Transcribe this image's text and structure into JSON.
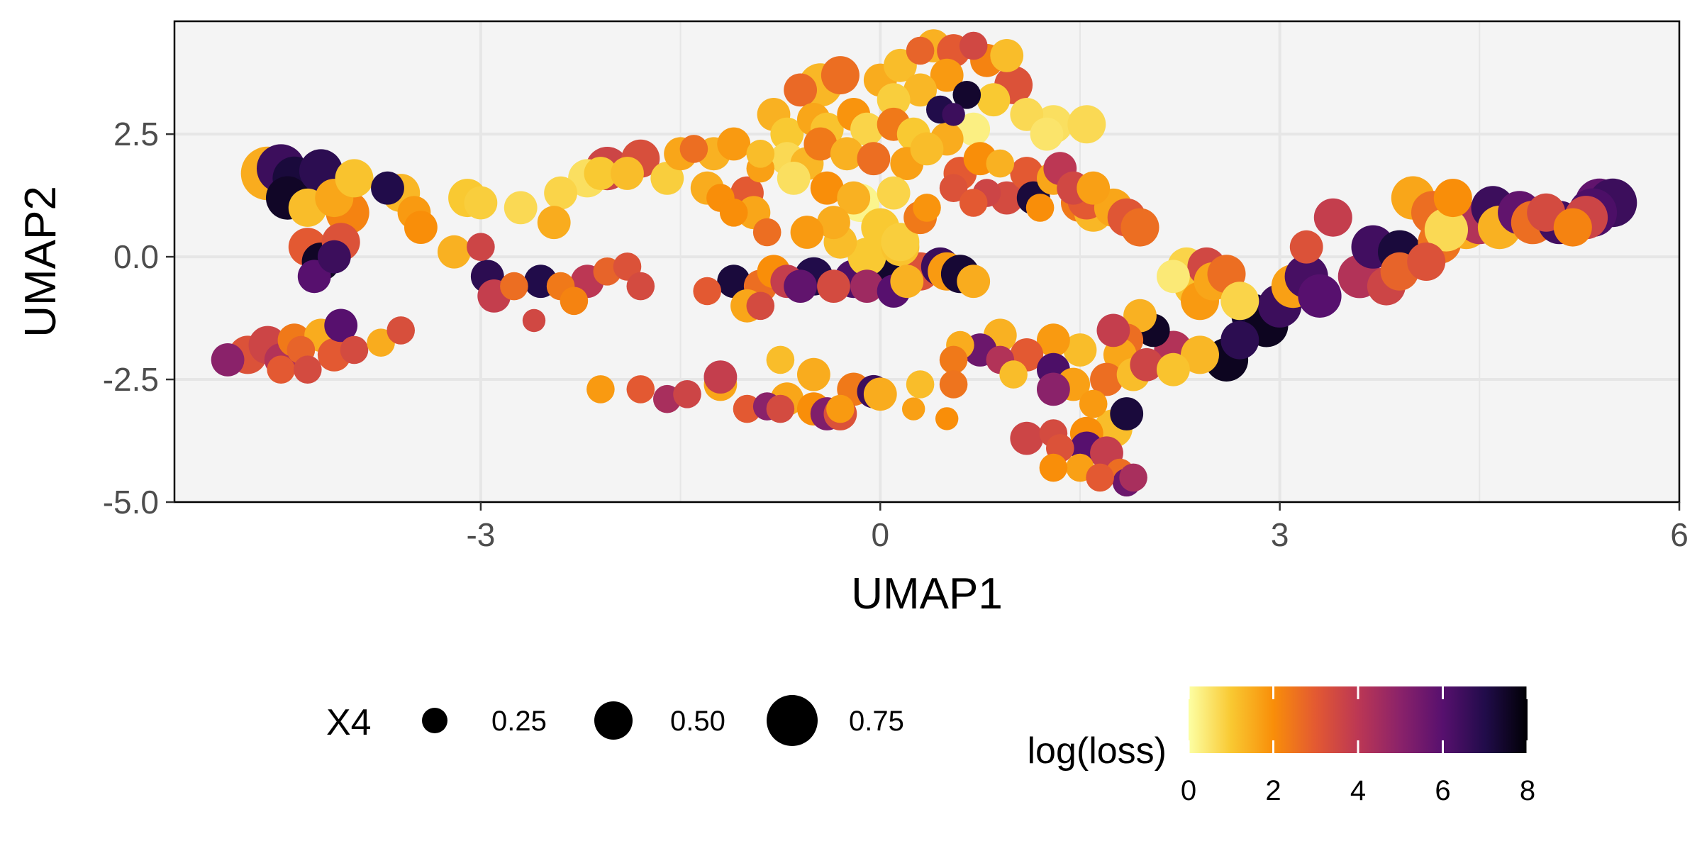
{
  "chart_data": {
    "type": "scatter",
    "xlabel": "UMAP1",
    "ylabel": "UMAP2",
    "xlim": [
      -5.3,
      6.0
    ],
    "ylim": [
      -5.0,
      4.8
    ],
    "x_ticks": [
      -3,
      0,
      3,
      6
    ],
    "x_tick_labels": [
      "-3",
      "0",
      "3",
      "6"
    ],
    "y_ticks": [
      -5.0,
      -2.5,
      0.0,
      2.5
    ],
    "y_tick_labels": [
      "-5.0",
      "-2.5",
      "0.0",
      "2.5"
    ],
    "grid": true,
    "panel_background": "#f4f4f4",
    "grid_color": "#e6e6e6",
    "size_legend": {
      "title": "X4",
      "entries": [
        {
          "value": 0.25,
          "label": "0.25"
        },
        {
          "value": 0.5,
          "label": "0.50"
        },
        {
          "value": 0.75,
          "label": "0.75"
        }
      ]
    },
    "color_legend": {
      "title": "log(loss)",
      "palette": "inferno-reversed",
      "range": [
        0,
        8
      ],
      "tick_values": [
        0,
        2,
        4,
        6,
        8
      ],
      "tick_labels": [
        "0",
        "2",
        "4",
        "6",
        "8"
      ]
    },
    "legend_position": "bottom",
    "point_columns": [
      "x",
      "y",
      "size_X4",
      "log_loss"
    ],
    "points": [
      [
        -4.5,
        1.8,
        0.7,
        6.5
      ],
      [
        -4.4,
        1.6,
        0.6,
        7.2
      ],
      [
        -4.6,
        1.7,
        0.8,
        1.5
      ],
      [
        -4.35,
        1.4,
        0.7,
        2.0
      ],
      [
        -4.45,
        1.2,
        0.6,
        7.5
      ],
      [
        -4.3,
        1.0,
        0.5,
        1.2
      ],
      [
        -4.2,
        1.75,
        0.6,
        6.8
      ],
      [
        -4.1,
        1.2,
        0.5,
        1.6
      ],
      [
        -4.0,
        0.9,
        0.6,
        2.2
      ],
      [
        -3.95,
        1.6,
        0.5,
        1.1
      ],
      [
        -3.7,
        1.4,
        0.4,
        7.0
      ],
      [
        -3.6,
        1.3,
        0.5,
        1.3
      ],
      [
        -3.5,
        0.9,
        0.4,
        1.8
      ],
      [
        -3.45,
        0.6,
        0.4,
        2.0
      ],
      [
        -3.1,
        1.2,
        0.5,
        1.0
      ],
      [
        -3.0,
        1.1,
        0.4,
        0.9
      ],
      [
        -2.7,
        1.0,
        0.4,
        0.7
      ],
      [
        -2.4,
        1.3,
        0.4,
        0.8
      ],
      [
        -2.2,
        1.6,
        0.5,
        0.6
      ],
      [
        -2.05,
        1.8,
        0.6,
        3.6
      ],
      [
        -2.1,
        1.7,
        0.4,
        1.0
      ],
      [
        -1.9,
        1.7,
        0.4,
        1.2
      ],
      [
        -1.8,
        2.0,
        0.5,
        3.3
      ],
      [
        -1.6,
        1.6,
        0.4,
        0.9
      ],
      [
        -1.5,
        2.1,
        0.4,
        1.6
      ],
      [
        -1.4,
        2.2,
        0.3,
        2.6
      ],
      [
        -1.25,
        2.1,
        0.4,
        1.4
      ],
      [
        -1.1,
        2.3,
        0.4,
        1.8
      ],
      [
        -1.3,
        1.4,
        0.4,
        1.5
      ],
      [
        -1.2,
        1.2,
        0.3,
        2.0
      ],
      [
        -1.0,
        1.3,
        0.4,
        3.0
      ],
      [
        -0.9,
        1.8,
        0.3,
        1.7
      ],
      [
        -2.45,
        0.7,
        0.4,
        1.5
      ],
      [
        -4.3,
        0.2,
        0.5,
        3.0
      ],
      [
        -4.2,
        -0.1,
        0.5,
        7.5
      ],
      [
        -4.25,
        -0.4,
        0.4,
        6.0
      ],
      [
        -4.05,
        0.3,
        0.5,
        3.2
      ],
      [
        -4.1,
        0.0,
        0.4,
        6.5
      ],
      [
        -3.2,
        0.1,
        0.4,
        1.4
      ],
      [
        -3.0,
        0.2,
        0.3,
        3.6
      ],
      [
        -2.95,
        -0.4,
        0.4,
        6.8
      ],
      [
        -2.75,
        -0.6,
        0.3,
        2.6
      ],
      [
        -2.55,
        -0.5,
        0.4,
        7.0
      ],
      [
        -2.4,
        -0.6,
        0.3,
        2.4
      ],
      [
        -2.2,
        -0.5,
        0.4,
        4.0
      ],
      [
        -2.05,
        -0.3,
        0.3,
        2.8
      ],
      [
        -1.9,
        -0.2,
        0.3,
        3.2
      ],
      [
        -1.8,
        -0.6,
        0.3,
        3.4
      ],
      [
        -2.6,
        -1.3,
        0.2,
        3.5
      ],
      [
        -2.3,
        -0.9,
        0.3,
        2.2
      ],
      [
        -2.9,
        -0.8,
        0.4,
        3.8
      ],
      [
        -4.9,
        -2.1,
        0.4,
        5.0
      ],
      [
        -4.75,
        -2.0,
        0.5,
        3.2
      ],
      [
        -4.6,
        -1.8,
        0.5,
        3.6
      ],
      [
        -4.5,
        -2.1,
        0.4,
        4.2
      ],
      [
        -4.4,
        -1.7,
        0.4,
        2.4
      ],
      [
        -4.35,
        -1.9,
        0.3,
        2.8
      ],
      [
        -4.2,
        -1.6,
        0.4,
        1.5
      ],
      [
        -4.1,
        -2.0,
        0.4,
        3.0
      ],
      [
        -4.05,
        -1.4,
        0.4,
        6.0
      ],
      [
        -3.95,
        -1.9,
        0.3,
        3.4
      ],
      [
        -3.75,
        -1.75,
        0.3,
        1.5
      ],
      [
        -3.6,
        -1.5,
        0.3,
        3.3
      ],
      [
        -4.5,
        -2.3,
        0.3,
        3.0
      ],
      [
        -4.3,
        -2.3,
        0.3,
        3.4
      ],
      [
        -1.1,
        -0.5,
        0.4,
        7.2
      ],
      [
        -0.9,
        -0.6,
        0.4,
        2.6
      ],
      [
        -0.8,
        -0.3,
        0.4,
        2.0
      ],
      [
        -0.7,
        -0.5,
        0.4,
        3.8
      ],
      [
        -0.6,
        -0.6,
        0.4,
        5.8
      ],
      [
        -0.5,
        -0.4,
        0.5,
        7.0
      ],
      [
        -0.35,
        -0.6,
        0.4,
        3.4
      ],
      [
        -0.2,
        -0.45,
        0.5,
        6.2
      ],
      [
        -0.1,
        -0.6,
        0.4,
        4.6
      ],
      [
        0.0,
        -0.4,
        0.6,
        7.4
      ],
      [
        0.1,
        -0.7,
        0.4,
        6.0
      ],
      [
        0.2,
        -0.5,
        0.4,
        1.4
      ],
      [
        0.3,
        -0.3,
        0.5,
        3.2
      ],
      [
        0.45,
        -0.2,
        0.5,
        6.5
      ],
      [
        0.5,
        -0.3,
        0.5,
        1.8
      ],
      [
        0.6,
        -0.35,
        0.5,
        7.3
      ],
      [
        0.7,
        -0.5,
        0.4,
        1.5
      ],
      [
        -1.3,
        -0.7,
        0.3,
        3.0
      ],
      [
        -1.0,
        -1.0,
        0.4,
        1.6
      ],
      [
        -0.9,
        -1.0,
        0.3,
        3.4
      ],
      [
        -0.1,
        0.0,
        0.5,
        1.0
      ],
      [
        -0.3,
        0.3,
        0.4,
        1.2
      ],
      [
        0.15,
        0.2,
        0.5,
        1.1
      ],
      [
        -0.45,
        3.5,
        0.6,
        1.3
      ],
      [
        -0.6,
        3.4,
        0.4,
        2.7
      ],
      [
        -0.3,
        3.7,
        0.5,
        2.6
      ],
      [
        0.0,
        3.6,
        0.4,
        1.5
      ],
      [
        0.15,
        3.9,
        0.4,
        1.2
      ],
      [
        0.3,
        4.2,
        0.3,
        2.8
      ],
      [
        0.4,
        4.3,
        0.4,
        1.4
      ],
      [
        0.55,
        4.2,
        0.4,
        3.0
      ],
      [
        0.7,
        4.3,
        0.3,
        3.5
      ],
      [
        0.8,
        4.0,
        0.4,
        2.2
      ],
      [
        0.95,
        4.1,
        0.4,
        1.2
      ],
      [
        1.0,
        3.5,
        0.5,
        3.2
      ],
      [
        0.85,
        3.2,
        0.4,
        1.0
      ],
      [
        0.65,
        3.3,
        0.3,
        7.4
      ],
      [
        0.5,
        3.7,
        0.4,
        1.8
      ],
      [
        0.3,
        3.4,
        0.4,
        1.3
      ],
      [
        0.1,
        3.2,
        0.4,
        0.9
      ],
      [
        0.45,
        3.0,
        0.3,
        7.0
      ],
      [
        0.55,
        2.9,
        0.2,
        6.5
      ],
      [
        0.7,
        2.6,
        0.4,
        0.3
      ],
      [
        1.1,
        2.9,
        0.4,
        0.7
      ],
      [
        1.3,
        2.7,
        0.5,
        0.6
      ],
      [
        1.55,
        2.7,
        0.5,
        0.7
      ],
      [
        1.25,
        2.5,
        0.4,
        0.5
      ],
      [
        -0.8,
        2.9,
        0.4,
        1.4
      ],
      [
        -0.7,
        2.5,
        0.4,
        1.0
      ],
      [
        -0.5,
        2.8,
        0.4,
        1.6
      ],
      [
        -0.4,
        2.6,
        0.4,
        1.1
      ],
      [
        -0.2,
        2.9,
        0.4,
        1.9
      ],
      [
        -0.1,
        2.6,
        0.4,
        0.8
      ],
      [
        0.1,
        2.7,
        0.4,
        2.4
      ],
      [
        0.25,
        2.5,
        0.4,
        1.0
      ],
      [
        0.5,
        2.4,
        0.4,
        1.5
      ],
      [
        -0.9,
        2.1,
        0.3,
        1.2
      ],
      [
        -0.7,
        2.0,
        0.4,
        0.7
      ],
      [
        -0.55,
        1.9,
        0.4,
        1.3
      ],
      [
        -0.45,
        2.3,
        0.4,
        2.4
      ],
      [
        -0.25,
        2.1,
        0.4,
        1.4
      ],
      [
        -0.05,
        2.0,
        0.4,
        2.6
      ],
      [
        0.2,
        1.9,
        0.4,
        1.7
      ],
      [
        0.35,
        2.2,
        0.4,
        1.2
      ],
      [
        0.6,
        1.7,
        0.4,
        3.0
      ],
      [
        0.75,
        2.0,
        0.4,
        2.0
      ],
      [
        0.9,
        1.9,
        0.3,
        1.4
      ],
      [
        -0.65,
        1.6,
        0.4,
        0.6
      ],
      [
        -0.4,
        1.4,
        0.4,
        2.0
      ],
      [
        -0.2,
        1.2,
        0.4,
        1.4
      ],
      [
        -0.15,
        1.1,
        0.5,
        0.2
      ],
      [
        0.1,
        1.3,
        0.4,
        0.8
      ],
      [
        0.35,
        1.0,
        0.3,
        1.9
      ],
      [
        0.3,
        0.8,
        0.4,
        2.4
      ],
      [
        0.0,
        0.6,
        0.5,
        1.0
      ],
      [
        -0.35,
        0.7,
        0.4,
        1.5
      ],
      [
        -0.55,
        0.5,
        0.4,
        1.8
      ],
      [
        -0.85,
        0.5,
        0.3,
        2.6
      ],
      [
        -0.95,
        0.9,
        0.4,
        1.6
      ],
      [
        -1.1,
        0.9,
        0.3,
        2.0
      ],
      [
        0.15,
        0.3,
        0.5,
        0.9
      ],
      [
        0.55,
        1.4,
        0.3,
        3.2
      ],
      [
        0.8,
        1.3,
        0.3,
        3.6
      ],
      [
        0.7,
        1.1,
        0.3,
        3.0
      ],
      [
        0.95,
        1.2,
        0.4,
        3.4
      ],
      [
        1.1,
        1.7,
        0.4,
        3.0
      ],
      [
        1.15,
        1.2,
        0.4,
        7.2
      ],
      [
        1.3,
        1.6,
        0.4,
        1.6
      ],
      [
        1.35,
        1.8,
        0.4,
        4.0
      ],
      [
        1.45,
        1.4,
        0.4,
        3.5
      ],
      [
        1.5,
        1.1,
        0.5,
        2.4
      ],
      [
        1.6,
        0.9,
        0.5,
        1.3
      ],
      [
        1.55,
        1.15,
        0.5,
        3.0
      ],
      [
        1.75,
        1.0,
        0.5,
        1.6
      ],
      [
        1.85,
        0.8,
        0.5,
        3.1
      ],
      [
        1.95,
        0.6,
        0.5,
        2.6
      ],
      [
        1.6,
        1.4,
        0.4,
        1.7
      ],
      [
        1.2,
        1.0,
        0.3,
        2.0
      ],
      [
        2.2,
        -0.4,
        0.4,
        0.4
      ],
      [
        2.3,
        -0.2,
        0.5,
        0.8
      ],
      [
        2.35,
        -0.6,
        0.5,
        1.1
      ],
      [
        2.4,
        -0.9,
        0.5,
        1.8
      ],
      [
        2.45,
        -0.2,
        0.5,
        3.5
      ],
      [
        2.5,
        -0.5,
        0.5,
        1.6
      ],
      [
        2.6,
        -0.35,
        0.5,
        2.6
      ],
      [
        2.7,
        -0.9,
        0.5,
        0.8
      ],
      [
        2.8,
        -1.2,
        0.6,
        7.3
      ],
      [
        2.9,
        -1.4,
        0.6,
        7.6
      ],
      [
        3.0,
        -1.0,
        0.6,
        6.5
      ],
      [
        3.1,
        -0.6,
        0.6,
        1.7
      ],
      [
        3.2,
        -0.4,
        0.6,
        6.3
      ],
      [
        3.3,
        -0.8,
        0.6,
        6.0
      ],
      [
        3.4,
        0.8,
        0.5,
        3.8
      ],
      [
        3.2,
        0.2,
        0.4,
        3.2
      ],
      [
        3.6,
        -0.4,
        0.6,
        4.2
      ],
      [
        3.7,
        0.2,
        0.6,
        6.4
      ],
      [
        3.9,
        0.1,
        0.6,
        7.2
      ],
      [
        4.0,
        1.2,
        0.6,
        1.6
      ],
      [
        4.15,
        0.9,
        0.6,
        2.6
      ],
      [
        4.2,
        0.3,
        0.6,
        2.5
      ],
      [
        4.3,
        1.2,
        0.5,
        2.0
      ],
      [
        4.4,
        0.6,
        0.6,
        1.5
      ],
      [
        4.5,
        0.7,
        0.6,
        4.2
      ],
      [
        4.6,
        1.0,
        0.6,
        6.5
      ],
      [
        4.25,
        0.55,
        0.6,
        0.7
      ],
      [
        4.65,
        0.6,
        0.6,
        1.4
      ],
      [
        4.8,
        0.9,
        0.6,
        5.8
      ],
      [
        4.9,
        0.7,
        0.6,
        2.6
      ],
      [
        5.0,
        0.9,
        0.5,
        3.4
      ],
      [
        5.1,
        0.7,
        0.6,
        6.4
      ],
      [
        5.2,
        0.6,
        0.5,
        2.2
      ],
      [
        5.3,
        0.8,
        0.6,
        3.6
      ],
      [
        5.4,
        1.1,
        0.7,
        5.8
      ],
      [
        5.5,
        1.1,
        0.7,
        6.5
      ],
      [
        5.35,
        0.9,
        0.7,
        6.2
      ],
      [
        3.8,
        -0.6,
        0.5,
        3.6
      ],
      [
        3.9,
        -0.3,
        0.5,
        2.8
      ],
      [
        4.1,
        -0.1,
        0.5,
        3.2
      ],
      [
        2.05,
        -1.5,
        0.4,
        7.5
      ],
      [
        1.95,
        -1.2,
        0.4,
        1.4
      ],
      [
        1.85,
        -1.7,
        0.4,
        2.6
      ],
      [
        2.2,
        -1.9,
        0.5,
        4.2
      ],
      [
        2.4,
        -2.0,
        0.5,
        1.3
      ],
      [
        2.6,
        -2.1,
        0.6,
        7.6
      ],
      [
        2.7,
        -1.7,
        0.5,
        6.8
      ],
      [
        1.8,
        -2.0,
        0.4,
        1.6
      ],
      [
        1.75,
        -1.5,
        0.4,
        3.8
      ],
      [
        1.5,
        -1.9,
        0.4,
        1.2
      ],
      [
        1.3,
        -1.7,
        0.4,
        1.8
      ],
      [
        1.1,
        -2.0,
        0.4,
        3.0
      ],
      [
        0.9,
        -1.6,
        0.4,
        1.4
      ],
      [
        0.75,
        -1.9,
        0.4,
        5.6
      ],
      [
        0.9,
        -2.1,
        0.3,
        4.2
      ],
      [
        1.0,
        -2.4,
        0.3,
        1.2
      ],
      [
        1.3,
        -2.3,
        0.4,
        6.2
      ],
      [
        1.45,
        -2.6,
        0.4,
        1.7
      ],
      [
        1.7,
        -2.5,
        0.4,
        2.6
      ],
      [
        1.9,
        -2.4,
        0.4,
        1.2
      ],
      [
        2.0,
        -2.2,
        0.4,
        3.6
      ],
      [
        2.2,
        -2.3,
        0.4,
        1.1
      ],
      [
        0.6,
        -1.8,
        0.3,
        1.5
      ],
      [
        0.55,
        -2.1,
        0.3,
        2.4
      ],
      [
        1.3,
        -2.7,
        0.4,
        5.0
      ],
      [
        1.6,
        -3.0,
        0.3,
        1.8
      ],
      [
        1.85,
        -3.2,
        0.4,
        7.2
      ],
      [
        1.75,
        -3.5,
        0.5,
        1.2
      ],
      [
        1.55,
        -3.6,
        0.4,
        2.0
      ],
      [
        1.3,
        -3.6,
        0.3,
        3.4
      ],
      [
        1.1,
        -3.7,
        0.4,
        3.6
      ],
      [
        1.35,
        -3.9,
        0.3,
        3.2
      ],
      [
        1.55,
        -3.9,
        0.4,
        6.0
      ],
      [
        1.7,
        -4.0,
        0.4,
        3.8
      ],
      [
        1.8,
        -4.4,
        0.3,
        2.6
      ],
      [
        1.85,
        -4.6,
        0.3,
        5.6
      ],
      [
        1.5,
        -4.3,
        0.3,
        1.7
      ],
      [
        1.3,
        -4.3,
        0.3,
        2.0
      ],
      [
        1.65,
        -4.5,
        0.3,
        3.0
      ],
      [
        1.9,
        -4.5,
        0.3,
        4.4
      ],
      [
        -2.1,
        -2.7,
        0.3,
        1.8
      ],
      [
        -1.8,
        -2.7,
        0.3,
        3.0
      ],
      [
        -1.6,
        -2.9,
        0.3,
        4.4
      ],
      [
        -1.45,
        -2.8,
        0.3,
        3.6
      ],
      [
        -1.2,
        -2.6,
        0.4,
        1.6
      ],
      [
        -1.2,
        -2.45,
        0.4,
        3.8
      ],
      [
        -1.0,
        -3.1,
        0.3,
        3.0
      ],
      [
        -0.85,
        -3.05,
        0.3,
        5.0
      ],
      [
        -0.75,
        -3.1,
        0.3,
        3.4
      ],
      [
        -0.7,
        -2.9,
        0.4,
        1.6
      ],
      [
        -0.5,
        -3.1,
        0.4,
        2.0
      ],
      [
        -0.4,
        -3.2,
        0.4,
        5.2
      ],
      [
        -0.3,
        -3.1,
        0.3,
        1.8
      ],
      [
        -0.2,
        -2.7,
        0.4,
        2.4
      ],
      [
        -0.05,
        -2.75,
        0.4,
        6.5
      ],
      [
        0.0,
        -2.8,
        0.4,
        1.5
      ],
      [
        -0.5,
        -2.4,
        0.4,
        1.5
      ],
      [
        -0.75,
        -2.1,
        0.3,
        1.2
      ],
      [
        0.3,
        -2.6,
        0.3,
        1.2
      ],
      [
        0.25,
        -3.1,
        0.2,
        1.7
      ],
      [
        0.5,
        -3.3,
        0.2,
        2.0
      ],
      [
        0.55,
        -2.6,
        0.3,
        2.5
      ],
      [
        -0.3,
        -3.2,
        0.4,
        3.2
      ]
    ]
  }
}
